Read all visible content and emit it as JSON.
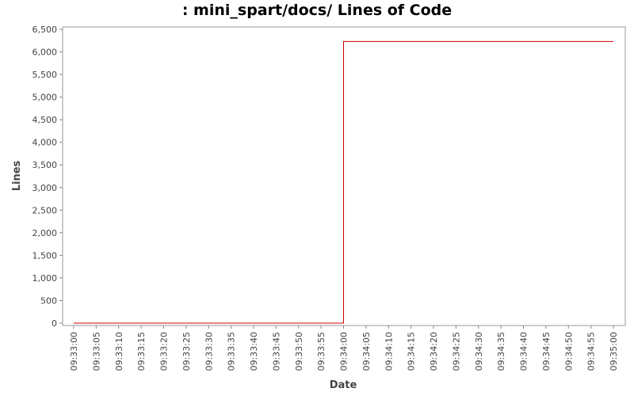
{
  "chart_data": {
    "type": "line",
    "title": ": mini_spart/docs/ Lines of Code",
    "xlabel": "Date",
    "ylabel": "Lines",
    "ylim": [
      0,
      6500
    ],
    "y_ticks": [
      0,
      500,
      1000,
      1500,
      2000,
      2500,
      3000,
      3500,
      4000,
      4500,
      5000,
      5500,
      6000,
      6500
    ],
    "y_tick_labels": [
      "0",
      "500",
      "1,000",
      "1,500",
      "2,000",
      "2,500",
      "3,000",
      "3,500",
      "4,000",
      "4,500",
      "5,000",
      "5,500",
      "6,000",
      "6,500"
    ],
    "x_tick_labels": [
      "09:33:00",
      "09:33:05",
      "09:33:10",
      "09:33:15",
      "09:33:20",
      "09:33:25",
      "09:33:30",
      "09:33:35",
      "09:33:40",
      "09:33:45",
      "09:33:50",
      "09:33:55",
      "09:34:00",
      "09:34:05",
      "09:34:10",
      "09:34:15",
      "09:34:20",
      "09:34:25",
      "09:34:30",
      "09:34:35",
      "09:34:40",
      "09:34:45",
      "09:34:50",
      "09:34:55",
      "09:35:00"
    ],
    "x_range": [
      "09:33:00",
      "09:35:00"
    ],
    "grid": false,
    "legend": "none",
    "step": true,
    "series": [
      {
        "color": "#cc0000",
        "points": [
          {
            "x": "09:33:00",
            "y": 0
          },
          {
            "x": "09:34:00",
            "y": 0
          },
          {
            "x": "09:34:00",
            "y": 6230
          },
          {
            "x": "09:35:00",
            "y": 6230
          }
        ]
      }
    ]
  }
}
